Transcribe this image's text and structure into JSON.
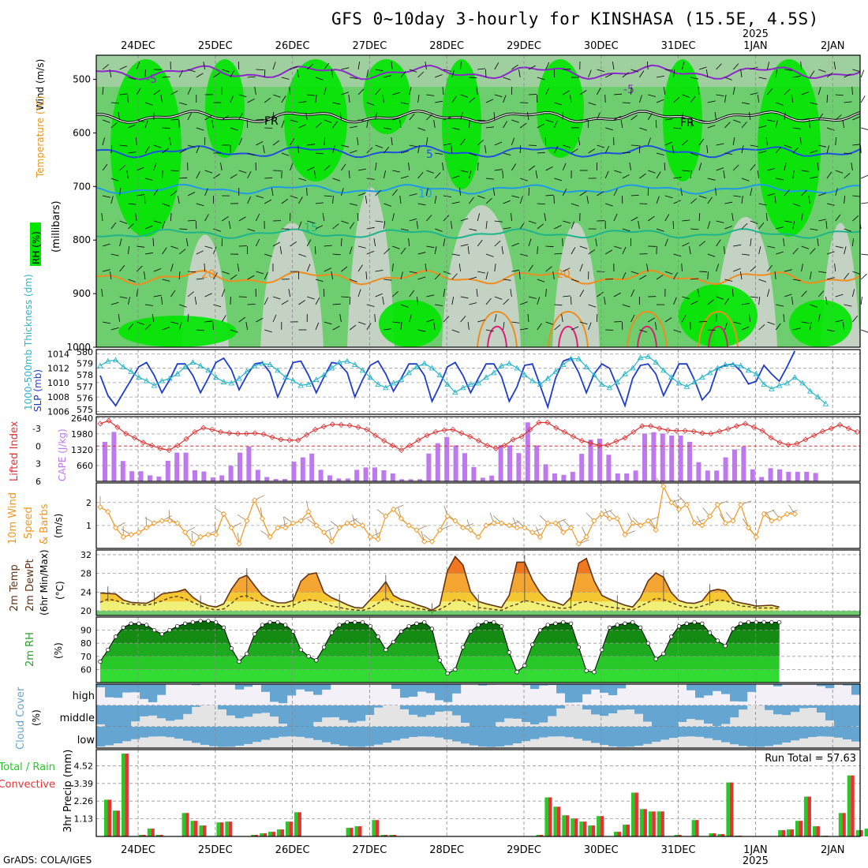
{
  "title": "GFS 0~10day 3-hourly for KINSHASA (15.5E, 4.5S)",
  "credit": "GrADS: COLA/IGES",
  "time_axis": {
    "dates": [
      "24DEC",
      "25DEC",
      "26DEC",
      "27DEC",
      "28DEC",
      "29DEC",
      "30DEC",
      "31DEC",
      "1JAN",
      "2JAN"
    ],
    "year_label": "2025",
    "year_under": "1JAN"
  },
  "panels": {
    "upper_air": {
      "ylabel": "(millibars)",
      "legend": [
        "RH (%)",
        "Temperature (°C)",
        "Wind (m/s)"
      ],
      "yticks": [
        500,
        600,
        700,
        800,
        900,
        1000
      ],
      "isotherm_labels": [
        "-5",
        "-5",
        "FR",
        "FR",
        "5",
        "10",
        "15",
        "20",
        "20"
      ]
    },
    "thickness_slp": {
      "left_label": "1000-500mb Thickness (dm)",
      "right_label": "SLP (mb)",
      "left_ticks": [
        575,
        576,
        577,
        578,
        579,
        580
      ],
      "right_ticks": [
        1006,
        1008,
        1010,
        1012,
        1014
      ]
    },
    "li_cape": {
      "left_label": "Lifted Index",
      "right_label": "CAPE (J/kg)",
      "left_ticks": [
        -3,
        0,
        3,
        6
      ],
      "right_ticks": [
        660,
        1320,
        1980,
        2640
      ]
    },
    "wind10m": {
      "label": "10m Wind Speed & Barbs",
      "unit": "(m/s)",
      "yticks": [
        1,
        2
      ]
    },
    "temp2m": {
      "label": "2m Temp 2m DewPt (6hr Min/Max)",
      "unit": "(°C)",
      "yticks": [
        20,
        24,
        28,
        32
      ]
    },
    "rh2m": {
      "label": "2m RH",
      "unit": "(%)",
      "yticks": [
        60,
        70,
        80,
        90
      ]
    },
    "cloud": {
      "label": "Cloud Cover (%)",
      "levels": [
        "high",
        "middle",
        "low"
      ]
    },
    "precip": {
      "label": "3hr Precip (mm)",
      "legend_total": "Total / Rain",
      "legend_conv": "Convective",
      "run_total": "Run Total = 57.63",
      "yticks": [
        1.13,
        2.26,
        3.39,
        4.52
      ]
    }
  },
  "colors": {
    "rh_green": "#00e600",
    "rh_mid": "#6ecd6e",
    "rh_gray": "#c8d2c8",
    "slp": "#1e3cc8",
    "thickness": "#28b4c8",
    "lifted_index": "#dc3232",
    "cape": "#be78f0",
    "wind": "#f0961e",
    "temp_fill": "#f5c832",
    "cloud": "#64a5d2",
    "precip_total": "#28c828",
    "precip_conv": "#e63232"
  },
  "chart_data": [
    {
      "type": "line",
      "title": "1000-500mb Thickness (dm) / SLP (mb)",
      "x_step_hours": 3,
      "series": [
        {
          "name": "SLP (mb)",
          "values": [
            1011,
            1008.2,
            1006.8,
            1008.6,
            1010.4,
            1012.2,
            1012.8,
            1011,
            1008.6,
            1010.4,
            1012.6,
            1012.6,
            1011,
            1008.6,
            1010.6,
            1012.8,
            1013.4,
            1011.8,
            1009,
            1011,
            1012.6,
            1012.8,
            1011.4,
            1008,
            1010.4,
            1012.8,
            1013,
            1011,
            1008.6,
            1010.8,
            1012.8,
            1012.6,
            1011.4,
            1008,
            1010.4,
            1012.4,
            1013,
            1011.2,
            1008.8,
            1010.6,
            1012.6,
            1012.6,
            1011,
            1007.4,
            1009.6,
            1012.2,
            1012.8,
            1011,
            1008.6,
            1010.6,
            1012.6,
            1012.6,
            1010.8,
            1007.4,
            1009.4,
            1012.4,
            1012.6,
            1009.6,
            1006.6,
            1010.6,
            1013,
            1013.4,
            1011.4,
            1008.6,
            1011.2,
            1012.6,
            1012,
            1009.4,
            1006.8,
            1010.6,
            1012.4,
            1012.6,
            1011.2,
            1008.2,
            1010.4,
            1012.6,
            1012.6,
            1010.4,
            1007.6,
            1008.8,
            1012,
            1012.4,
            1012.6,
            1011.6,
            1009.8,
            1010.2,
            1012.4,
            1011.2,
            1010.2,
            1012.2,
            1014.4
          ]
        },
        {
          "name": "1000-500mb Thickness (dm)",
          "values": [
            578.8,
            579.2,
            579.3,
            578.7,
            578.3,
            577.8,
            577.5,
            577.1,
            577.5,
            577.7,
            578.1,
            578.7,
            579.1,
            578.8,
            578.4,
            577.8,
            577.4,
            577.3,
            577.7,
            578.3,
            578.8,
            579,
            578.9,
            578.4,
            577.8,
            577.5,
            577.1,
            577.2,
            577.6,
            578,
            578.6,
            579.1,
            579.2,
            578.9,
            578.4,
            577.8,
            577.2,
            576.9,
            577.3,
            577.6,
            578.2,
            578.7,
            579,
            578.6,
            578,
            577.2,
            576.5,
            576.9,
            577.2,
            577.3,
            577.8,
            578.2,
            578.8,
            579,
            578.6,
            578,
            577.5,
            577.2,
            577.7,
            578.3,
            578.9,
            579.4,
            579.4,
            578.7,
            578,
            577.2,
            576.9,
            577.4,
            578.1,
            578.6,
            579.5,
            579.6,
            579.1,
            578.4,
            577.8,
            577.3,
            577,
            577.4,
            577.8,
            578.2,
            578.6,
            578.9,
            578.9,
            578.8,
            578.4,
            578.1,
            577.2,
            576.8,
            577.1,
            577.3,
            577.8,
            577.3,
            576.6,
            576.1,
            575.5
          ]
        }
      ]
    },
    {
      "type": "bar",
      "title": "Lifted Index / CAPE (J/kg)",
      "x_step_hours": 3,
      "series": [
        {
          "name": "CAPE (J/kg)",
          "values": [
            1650,
            2060,
            850,
            420,
            420,
            250,
            200,
            860,
            1200,
            1200,
            460,
            410,
            160,
            250,
            650,
            1200,
            1450,
            480,
            180,
            100,
            100,
            820,
            1000,
            1160,
            480,
            250,
            120,
            120,
            480,
            580,
            580,
            460,
            330,
            90,
            90,
            90,
            1160,
            1590,
            1850,
            1500,
            1180,
            600,
            150,
            240,
            1510,
            1500,
            1180,
            2460,
            1500,
            710,
            330,
            270,
            400,
            1150,
            1740,
            1780,
            1110,
            330,
            330,
            450,
            2000,
            2050,
            2000,
            1910,
            1910,
            1650,
            800,
            450,
            450,
            1000,
            1330,
            1450,
            500,
            180,
            550,
            500,
            400,
            400,
            400,
            350
          ]
        },
        {
          "name": "Lifted Index",
          "values": [
            -3.8,
            -4.3,
            -3.2,
            -2.1,
            -1.4,
            -0.6,
            -0.1,
            0.4,
            0.7,
            -0.1,
            -1.2,
            -2.4,
            -3.1,
            -2.8,
            -2.4,
            -2.2,
            -2.1,
            -2.1,
            -2.2,
            -2,
            -1.5,
            -1.1,
            -1,
            -1,
            -1.9,
            -2.8,
            -3.3,
            -3.7,
            -3.6,
            -3.5,
            -3.2,
            -2.8,
            -1.8,
            -0.9,
            -0.1,
            0.7,
            -0.1,
            -1,
            -1.8,
            -2.4,
            -2.7,
            -2.8,
            -2.2,
            -1.6,
            -0.9,
            -0.1,
            0.4,
            -0.1,
            -1.1,
            -1.6,
            -2.8,
            -4,
            -4,
            -3.1,
            -2.4,
            -1.6,
            -0.9,
            -0.5,
            -0.1,
            -0.2,
            -0.8,
            -1.4,
            -2.4,
            -3.4,
            -3.4,
            -3,
            -2.7,
            -2.6,
            -2.6,
            -2.5,
            -2.2,
            -2.1,
            -2.5,
            -2.9,
            -3.4,
            -3.8,
            -3.2,
            -2.6,
            -1.4,
            -0.6,
            -0.2,
            -0.4,
            -1.1,
            -1.8,
            -2.5,
            -3,
            -3.6,
            -3,
            -2.4
          ]
        }
      ]
    },
    {
      "type": "line",
      "title": "10m Wind Speed (m/s)",
      "x_step_hours": 3,
      "series": [
        {
          "name": "10m Wind Speed",
          "values": [
            1.8,
            1.6,
            0.9,
            0.5,
            0.6,
            0.7,
            0.9,
            1.1,
            1.2,
            1.2,
            1.1,
            0.7,
            0.2,
            0.5,
            0.6,
            0.6,
            1.5,
            0.9,
            0.2,
            1.2,
            2.1,
            1.3,
            0.5,
            0.9,
            0.9,
            1.1,
            1.2,
            1.6,
            1,
            0.7,
            0.3,
            0.9,
            1.1,
            1,
            1,
            0.5,
            0.4,
            1.4,
            1.7,
            1.3,
            1,
            0.8,
            0.3,
            0.3,
            0.8,
            1.4,
            1.2,
            0.9,
            0.8,
            0.5,
            1,
            1.1,
            1.1,
            1,
            0.9,
            0.9,
            0.7,
            0.5,
            1.1,
            1.1,
            0.7,
            0.9,
            0.2,
            0.5,
            1.2,
            1.5,
            1.3,
            1.3,
            0.6,
            1.1,
            1,
            1.2,
            0.8,
            2.7,
            2,
            1.7,
            1.9,
            1.1,
            1,
            1.4,
            1.9,
            1.1,
            1.2,
            1.9,
            0.9,
            0.5,
            1.5,
            1.2,
            1.3,
            1.5,
            1.5
          ]
        }
      ]
    },
    {
      "type": "area",
      "title": "2m Temp / 2m DewPt (°C)",
      "x_step_hours": 3,
      "series": [
        {
          "name": "2m Temp",
          "values": [
            23.8,
            23.7,
            23.6,
            22.3,
            21.8,
            21.7,
            21.6,
            22.4,
            23.6,
            23.9,
            24.1,
            24.6,
            22.9,
            21.8,
            21.1,
            20.8,
            21.5,
            24.6,
            26.9,
            27.6,
            25.4,
            23.3,
            22.2,
            21.7,
            21.7,
            22.2,
            26.3,
            27.8,
            28.1,
            23.9,
            22.8,
            22.1,
            21.3,
            20.7,
            20.6,
            22.4,
            24.1,
            26.2,
            23.3,
            22.4,
            22,
            21.3,
            20.8,
            20.1,
            21.2,
            28.6,
            31.6,
            29.8,
            24.1,
            22,
            21.5,
            21.1,
            20.7,
            23.3,
            30.4,
            30.4,
            26.6,
            23.9,
            22.2,
            21.8,
            21.2,
            22.9,
            30.2,
            31.2,
            26.4,
            23.3,
            22.5,
            21.8,
            21.2,
            20.8,
            22.8,
            26.4,
            28.1,
            27.2,
            23.9,
            22.2,
            21.7,
            21.6,
            22.1,
            24.2,
            24.6,
            24.3,
            22.1,
            21.7,
            21.4,
            21,
            21.1,
            21.2,
            20.8
          ]
        },
        {
          "name": "2m DewPt",
          "values": [
            21.8,
            22.5,
            22.2,
            21.6,
            21.4,
            21.3,
            21.2,
            21.6,
            22.1,
            22.8,
            23.1,
            22.6,
            21.8,
            21.1,
            20.5,
            20.2,
            20.4,
            21.6,
            23,
            23.2,
            22.4,
            21.6,
            21.1,
            20.9,
            20.9,
            21.2,
            22,
            22.4,
            22.2,
            21.6,
            21,
            20.7,
            20.4,
            20.2,
            20.1,
            20.6,
            21.6,
            22.8,
            21.6,
            21,
            20.9,
            20.5,
            20.3,
            19.9,
            20.3,
            21.2,
            22.4,
            22.2,
            21.2,
            20.7,
            20.5,
            20.3,
            20.1,
            20.9,
            21.4,
            22.2,
            21.9,
            21.4,
            21,
            20.7,
            20.5,
            20.8,
            21.7,
            22,
            21.7,
            21.1,
            20.8,
            20.6,
            20.4,
            20.2,
            21,
            21.8,
            22.7,
            22.4,
            21.8,
            21.1,
            20.8,
            20.6,
            21,
            21.6,
            22.3,
            22.2,
            21.6,
            21,
            20.9,
            20.6,
            20.6,
            20.6,
            20.5
          ]
        }
      ]
    },
    {
      "type": "area",
      "title": "2m RH (%)",
      "x_step_hours": 3,
      "series": [
        {
          "name": "2m RH",
          "values": [
            66,
            75,
            85,
            92,
            95,
            95,
            94,
            90,
            87,
            90,
            93,
            95,
            96,
            97,
            97,
            96,
            92,
            76,
            66,
            72,
            87,
            94,
            96,
            96,
            94,
            89,
            75,
            70,
            67,
            77,
            88,
            94,
            96,
            96,
            96,
            93,
            85,
            75,
            81,
            89,
            93,
            95,
            96,
            91,
            67,
            57,
            60,
            77,
            89,
            94,
            96,
            96,
            93,
            73,
            58,
            63,
            79,
            90,
            94,
            95,
            96,
            95,
            77,
            59,
            58,
            75,
            92,
            94,
            95,
            96,
            92,
            80,
            68,
            72,
            85,
            93,
            95,
            96,
            95,
            88,
            82,
            78,
            91,
            95,
            96,
            96,
            96,
            96,
            96
          ]
        }
      ]
    },
    {
      "type": "bar",
      "title": "3hr Precip (mm)",
      "x_step_hours": 3,
      "series": [
        {
          "name": "Total / Rain",
          "values": [
            2.35,
            1.65,
            5.3,
            0,
            0.1,
            0.5,
            0.1,
            0,
            0,
            1.5,
            1,
            0.7,
            0,
            0.9,
            0.95,
            0,
            0,
            0.1,
            0.2,
            0.3,
            0.45,
            0.95,
            1.55,
            0,
            0,
            0,
            0,
            0,
            0.55,
            0.65,
            0,
            1.05,
            0.1,
            0.1,
            0,
            0,
            0,
            0,
            0,
            0,
            0,
            0,
            0,
            0,
            0,
            0,
            0,
            0,
            0,
            0,
            0.1,
            2.5,
            1.9,
            1.35,
            1.15,
            0.95,
            0.7,
            1.3,
            0,
            0.3,
            0.75,
            2.8,
            1.75,
            1.6,
            1.6,
            0,
            0.1,
            0,
            1.05,
            0,
            0.2,
            0.15,
            3.45,
            0.05,
            0,
            0,
            0,
            0,
            0.4,
            0.45,
            1,
            2.55,
            0.65,
            0.05,
            0,
            1.5,
            3.9,
            0.4,
            0.5,
            2.3
          ]
        },
        {
          "name": "Convective",
          "values": [
            2.35,
            1.65,
            5.3,
            0,
            0.1,
            0.5,
            0.1,
            0,
            0,
            1.5,
            1,
            0.7,
            0,
            0.9,
            0.95,
            0,
            0,
            0.1,
            0.2,
            0.3,
            0.45,
            0.95,
            1.55,
            0,
            0,
            0,
            0,
            0,
            0.55,
            0.65,
            0,
            1.05,
            0.1,
            0.1,
            0,
            0,
            0,
            0,
            0,
            0,
            0,
            0,
            0,
            0,
            0,
            0,
            0,
            0,
            0,
            0,
            0.1,
            2.5,
            1.9,
            1.35,
            1.15,
            0.95,
            0.7,
            1.3,
            0,
            0.3,
            0.75,
            2.8,
            1.75,
            1.6,
            1.6,
            0,
            0.1,
            0,
            1.05,
            0,
            0.2,
            0.15,
            3.45,
            0.05,
            0,
            0,
            0,
            0,
            0.4,
            0.45,
            1,
            2.55,
            0.65,
            0.05,
            0,
            1.5,
            3.9,
            0.4,
            0.5,
            2.3
          ]
        }
      ]
    }
  ]
}
